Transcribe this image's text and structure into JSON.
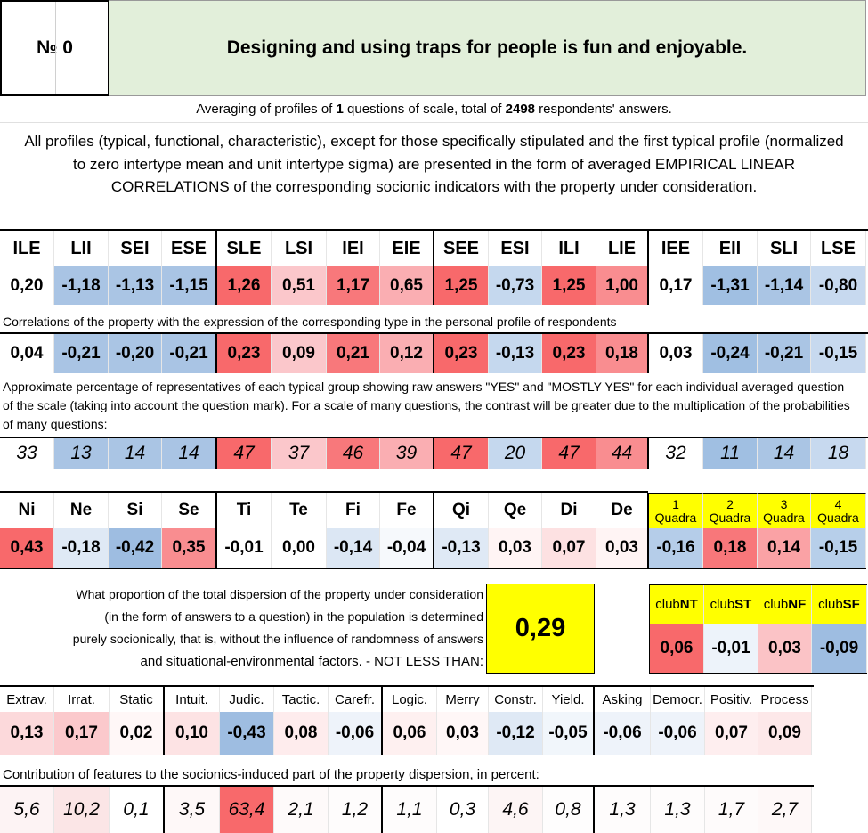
{
  "header": {
    "number": "№ 0",
    "title": "Designing and using traps for people is fun and enjoyable."
  },
  "summary": {
    "prefix": "Averaging of profiles of ",
    "questions": "1",
    "middle": " questions of scale, total of ",
    "respondents": "2498",
    "suffix": " respondents' answers."
  },
  "description": "All profiles (typical, functional, characteristic), except for those specifically stipulated and the first typical profile (normalized to zero intertype mean and unit intertype sigma) are presented in the form of averaged EMPIRICAL LINEAR CORRELATIONS of the corresponding socionic indicators with the property under consideration.",
  "types": {
    "labels": [
      "ILE",
      "LII",
      "SEI",
      "ESE",
      "SLE",
      "LSI",
      "IEI",
      "EIE",
      "SEE",
      "ESI",
      "ILI",
      "LIE",
      "IEE",
      "EII",
      "SLI",
      "LSE"
    ],
    "values": [
      "0,20",
      "-1,18",
      "-1,13",
      "-1,15",
      "1,26",
      "0,51",
      "1,17",
      "0,65",
      "1,25",
      "-0,73",
      "1,25",
      "1,00",
      "0,17",
      "-1,31",
      "-1,14",
      "-0,80"
    ],
    "colors": [
      "#ffffff",
      "#a9c4e4",
      "#aac5e4",
      "#a9c4e4",
      "#f8696b",
      "#fbc7cb",
      "#f8787b",
      "#faaeb2",
      "#f8696b",
      "#c5d8ee",
      "#f8696b",
      "#f98d90",
      "#ffffff",
      "#a0bfe2",
      "#aac5e4",
      "#c7d9ef"
    ]
  },
  "correlation_note": "Correlations of the property with the expression of the corresponding type in the personal profile of respondents",
  "correlations": {
    "values": [
      "0,04",
      "-0,21",
      "-0,20",
      "-0,21",
      "0,23",
      "0,09",
      "0,21",
      "0,12",
      "0,23",
      "-0,13",
      "0,23",
      "0,18",
      "0,03",
      "-0,24",
      "-0,21",
      "-0,15"
    ],
    "colors": [
      "#ffffff",
      "#a9c4e4",
      "#aac5e4",
      "#a9c4e4",
      "#f8696b",
      "#fbc7cb",
      "#f8787b",
      "#faaeb2",
      "#f8696b",
      "#c5d8ee",
      "#f8696b",
      "#f98d90",
      "#ffffff",
      "#a0bfe2",
      "#aac5e4",
      "#c7d9ef"
    ]
  },
  "percent_note": "Approximate percentage of representatives of each typical group showing raw answers \"YES\" and \"MOSTLY YES\" for each individual averaged question of the scale (taking into account the question mark). For a scale of many questions, the contrast will be greater due to the multiplication of the probabilities of many questions:",
  "percentages": {
    "values": [
      "33",
      "13",
      "14",
      "14",
      "47",
      "37",
      "46",
      "39",
      "47",
      "20",
      "47",
      "44",
      "32",
      "11",
      "14",
      "18"
    ],
    "colors": [
      "#ffffff",
      "#a9c4e4",
      "#aac5e4",
      "#a9c4e4",
      "#f8696b",
      "#fbc7cb",
      "#f8787b",
      "#faaeb2",
      "#f8696b",
      "#c5d8ee",
      "#f8696b",
      "#f98d90",
      "#ffffff",
      "#a0bfe2",
      "#aac5e4",
      "#c7d9ef"
    ]
  },
  "functions": {
    "labels": [
      "Ni",
      "Ne",
      "Si",
      "Se",
      "Ti",
      "Te",
      "Fi",
      "Fe",
      "Qi",
      "Qe",
      "Di",
      "De"
    ],
    "values": [
      "0,43",
      "-0,18",
      "-0,42",
      "0,35",
      "-0,01",
      "0,00",
      "-0,14",
      "-0,04",
      "-0,13",
      "0,03",
      "0,07",
      "0,03"
    ],
    "colors": [
      "#f8696b",
      "#dfe9f5",
      "#9ebde1",
      "#f98d90",
      "#ffffff",
      "#ffffff",
      "#dce7f4",
      "#f6f9fc",
      "#dfe9f5",
      "#fff4f4",
      "#fde1e2",
      "#fff4f4"
    ]
  },
  "quadras": {
    "labels": [
      [
        "1",
        "Quadra"
      ],
      [
        "2",
        "Quadra"
      ],
      [
        "3",
        "Quadra"
      ],
      [
        "4",
        "Quadra"
      ]
    ],
    "values": [
      "-0,16",
      "0,18",
      "0,14",
      "-0,15"
    ],
    "colors": [
      "#b5cde9",
      "#f8777a",
      "#faa2a5",
      "#b7cfea"
    ]
  },
  "dispersion": {
    "question_lines": [
      "What proportion of the total dispersion of the property under consideration",
      "(in the form of answers to a question) in the population is determined",
      "purely socionically, that is, without the influence of randomness of answers",
      "and situational-environmental factors. - NOT LESS THAN:"
    ],
    "value": "0,29"
  },
  "clubs": {
    "labels": [
      [
        "club",
        "NT"
      ],
      [
        "club",
        "ST"
      ],
      [
        "club",
        "NF"
      ],
      [
        "club",
        "SF"
      ]
    ],
    "values": [
      "0,06",
      "-0,01",
      "0,03",
      "-0,09"
    ],
    "colors": [
      "#f8696b",
      "#edf3fa",
      "#fbc3c6",
      "#9ebde1"
    ]
  },
  "traits": {
    "labels": [
      "Extrav.",
      "Irrat.",
      "Static",
      "Intuit.",
      "Judic.",
      "Tactic.",
      "Carefr.",
      "Logic.",
      "Merry",
      "Constr.",
      "Yield.",
      "Asking",
      "Democr.",
      "Positiv.",
      "Process"
    ],
    "values": [
      "0,13",
      "0,17",
      "0,02",
      "0,10",
      "-0,43",
      "0,08",
      "-0,06",
      "0,06",
      "0,03",
      "-0,12",
      "-0,05",
      "-0,06",
      "-0,06",
      "0,07",
      "0,09"
    ],
    "colors": [
      "#fcd9db",
      "#fbc9cc",
      "#fff7f7",
      "#fde3e4",
      "#9ebde1",
      "#feeced",
      "#eef3fa",
      "#fef0f0",
      "#fff7f7",
      "#dfe9f5",
      "#f1f6fb",
      "#eef3fa",
      "#eef3fa",
      "#feeeef",
      "#fde8e9"
    ]
  },
  "contribution_note": "Contribution of features to the socionics-induced part of the property dispersion, in percent:",
  "contributions": {
    "values": [
      "5,6",
      "10,2",
      "0,1",
      "3,5",
      "63,4",
      "2,1",
      "1,2",
      "1,1",
      "0,3",
      "4,6",
      "0,8",
      "1,3",
      "1,3",
      "1,7",
      "2,7"
    ],
    "colors": [
      "#fdf3f4",
      "#fbe5e6",
      "#ffffff",
      "#fef8f8",
      "#f8696b",
      "#fefafa",
      "#fefcfc",
      "#fefcfc",
      "#ffffff",
      "#fdf5f5",
      "#fefdfd",
      "#fefcfc",
      "#fefcfc",
      "#fefbfb",
      "#fef8f8"
    ]
  }
}
